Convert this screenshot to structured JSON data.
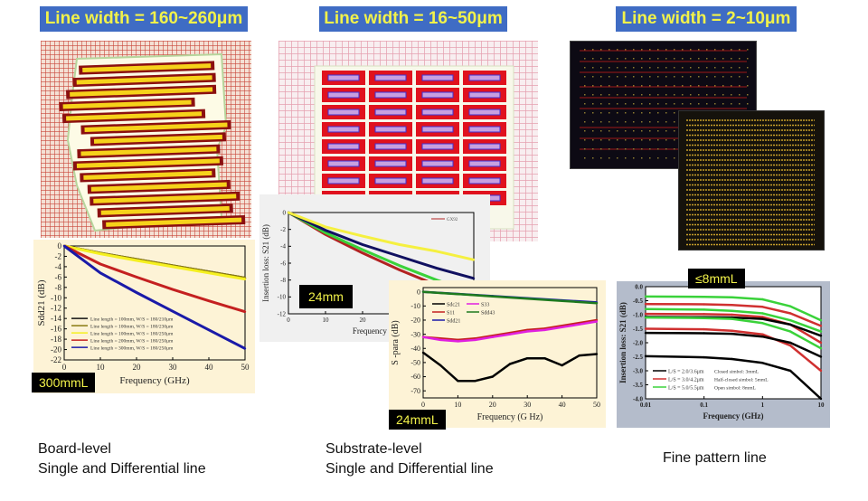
{
  "banners": [
    {
      "label": "Line width = 160~260μm"
    },
    {
      "label": "Line width = 16~50μm"
    },
    {
      "label": "Line width = 2~10μm"
    }
  ],
  "captions": [
    {
      "line1": "Board-level",
      "line2": "Single and Differential line"
    },
    {
      "line1": "Substrate-level",
      "line2": "Single and Differential line"
    },
    {
      "line1": "Fine pattern line",
      "line2": ""
    }
  ],
  "tags": {
    "board": "300mmL",
    "substrate_il": "24mm",
    "substrate_sp": "24mmL",
    "fine": "≤8mmL"
  },
  "colors": {
    "banner_bg": "#3f6cc4",
    "banner_text": "#f2f24a",
    "chart_bg_warm": "#fdf3d6",
    "chart_bg_gray": "#b4bccb"
  },
  "chart_data": [
    {
      "id": "board",
      "type": "line",
      "title": "",
      "xlabel": "Frequency (GHz)",
      "ylabel": "Sdd21 (dB)",
      "xlim": [
        0,
        50
      ],
      "ylim": [
        -22,
        0
      ],
      "xticks": [
        0,
        10,
        20,
        30,
        40,
        50
      ],
      "yticks": [
        0,
        -2,
        -4,
        -6,
        -8,
        -10,
        -12,
        -14,
        -16,
        -18,
        -20,
        -22
      ],
      "legend_position": "bottom-left",
      "series": [
        {
          "name": "Line length = 100mm, W/S = 180/210μm",
          "color": "#111111",
          "x": [
            0,
            10,
            20,
            30,
            40,
            50
          ],
          "y": [
            0,
            -1.4,
            -2.6,
            -3.8,
            -5.0,
            -6.2
          ]
        },
        {
          "name": "Line length = 100mm, W/S = 180/230μm",
          "color": "#8a7a10",
          "x": [
            0,
            10,
            20,
            30,
            40,
            50
          ],
          "y": [
            0,
            -1.4,
            -2.6,
            -3.8,
            -5.0,
            -6.2
          ]
        },
        {
          "name": "Line length = 100mm, W/S = 180/250μm",
          "color": "#f5f020",
          "x": [
            0,
            10,
            20,
            30,
            40,
            50
          ],
          "y": [
            0,
            -1.5,
            -2.8,
            -4.0,
            -5.2,
            -6.4
          ]
        },
        {
          "name": "Line length = 200mm, W/S = 180/250μm",
          "color": "#c42020",
          "x": [
            0,
            10,
            20,
            30,
            40,
            50
          ],
          "y": [
            0,
            -3.5,
            -6.0,
            -8.4,
            -10.6,
            -12.7
          ]
        },
        {
          "name": "Line length = 300mm, W/S = 180/250μm",
          "color": "#1a1aa8",
          "x": [
            0,
            10,
            20,
            30,
            40,
            50
          ],
          "y": [
            0,
            -5.2,
            -9.0,
            -12.6,
            -16.2,
            -19.8
          ]
        }
      ]
    },
    {
      "id": "substrate-insertion-loss",
      "type": "line",
      "title": "",
      "xlabel": "Frequency (GHz)",
      "ylabel": "Insertion loss: S21 (dB)",
      "xlim": [
        0,
        50
      ],
      "ylim": [
        -12,
        0
      ],
      "xticks": [
        0,
        10,
        20
      ],
      "yticks": [
        0,
        -2,
        -4,
        -6,
        -8,
        -10,
        -12
      ],
      "legend_position": "top-right",
      "legend": [
        "GX92"
      ],
      "series": [
        {
          "name": "GX92",
          "color": "#b22222",
          "x": [
            0,
            10,
            20,
            30,
            40,
            50
          ],
          "y": [
            0,
            -2.6,
            -4.8,
            -6.8,
            -8.6,
            -10.2
          ]
        },
        {
          "name": "green",
          "color": "#3ad23a",
          "x": [
            0,
            10,
            20,
            30,
            40,
            50
          ],
          "y": [
            0,
            -2.4,
            -4.4,
            -6.3,
            -8.0,
            -9.5
          ]
        },
        {
          "name": "navy",
          "color": "#101060",
          "x": [
            0,
            10,
            20,
            30,
            40,
            50
          ],
          "y": [
            0,
            -2.1,
            -3.8,
            -5.2,
            -6.6,
            -7.8
          ]
        },
        {
          "name": "yellow",
          "color": "#f5f040",
          "x": [
            0,
            10,
            20,
            30,
            40,
            50
          ],
          "y": [
            0,
            -1.7,
            -2.8,
            -3.8,
            -4.6,
            -5.6
          ]
        }
      ]
    },
    {
      "id": "substrate-sparams",
      "type": "line",
      "title": "",
      "xlabel": "Frequency (G Hz)",
      "ylabel": "S -para (dB)",
      "xlim": [
        0,
        50
      ],
      "ylim": [
        -75,
        3
      ],
      "xticks": [
        0,
        10,
        20,
        30,
        40,
        50
      ],
      "yticks": [
        0,
        -10,
        -20,
        -30,
        -40,
        -50,
        -60,
        -70
      ],
      "legend_position": "top-left",
      "series": [
        {
          "name": "Sdc21",
          "color": "#000000",
          "x": [
            0,
            5,
            10,
            15,
            20,
            25,
            30,
            35,
            40,
            45,
            50
          ],
          "y": [
            -43,
            -52,
            -63,
            -63,
            -60,
            -51,
            -47,
            -47,
            -52,
            -45,
            -44
          ]
        },
        {
          "name": "S11",
          "color": "#c42020",
          "x": [
            0,
            5,
            10,
            15,
            20,
            25,
            30,
            35,
            40,
            45,
            50
          ],
          "y": [
            -32,
            -33,
            -34,
            -33,
            -31,
            -29,
            -27,
            -26,
            -24,
            -22,
            -20
          ]
        },
        {
          "name": "Sdd21",
          "color": "#1a1aa8",
          "x": [
            0,
            10,
            20,
            30,
            40,
            50
          ],
          "y": [
            0,
            -1.5,
            -3,
            -4.5,
            -6,
            -7.5
          ]
        },
        {
          "name": "S33",
          "color": "#e020e0",
          "x": [
            0,
            5,
            10,
            15,
            20,
            25,
            30,
            35,
            40,
            45,
            50
          ],
          "y": [
            -32,
            -34,
            -35,
            -34,
            -32,
            -30,
            -28,
            -27,
            -25,
            -23,
            -21
          ]
        },
        {
          "name": "Sdd43",
          "color": "#1e7a1e",
          "x": [
            0,
            10,
            20,
            30,
            40,
            50
          ],
          "y": [
            0,
            -1.6,
            -3.2,
            -4.8,
            -6.4,
            -8
          ]
        }
      ]
    },
    {
      "id": "fine-pattern",
      "type": "line",
      "title": "",
      "xlabel": "Frequency (GHz)",
      "ylabel": "Insertion loss: S21 (dB)",
      "xscale": "log",
      "xlim": [
        0.01,
        10
      ],
      "ylim": [
        -4.0,
        0.0
      ],
      "xticks": [
        0.01,
        0.1,
        1,
        10
      ],
      "xtick_labels": [
        "0.01",
        "0.1",
        "1",
        "10"
      ],
      "yticks": [
        0.0,
        -0.5,
        -1.0,
        -1.5,
        -2.0,
        -2.5,
        -3.0,
        -3.5,
        -4.0
      ],
      "ytick_labels": [
        "0.0",
        "-0.5",
        "-1.0",
        "-1.5",
        "-2.0",
        "-2.5",
        "-3.0",
        "-3.5",
        "-4.0"
      ],
      "legend_position": "bottom-left",
      "legend": [
        "L/S = 2.0/3.6μm",
        "L/S = 3.0/4.2μm",
        "L/S = 5.0/5.5μm"
      ],
      "annotations": [
        "Closed simbol: 3mmL",
        "Half-closed simbol: 5mmL",
        "Open simbol: 8mmL"
      ],
      "series": [
        {
          "name": "L/S = 5.0/5.5μm 3mmL",
          "color": "#3ad23a",
          "x": [
            0.01,
            0.1,
            0.3,
            1,
            3,
            10
          ],
          "y": [
            -0.35,
            -0.36,
            -0.38,
            -0.45,
            -0.7,
            -1.2
          ]
        },
        {
          "name": "L/S = 3.0/4.2μm 3mmL",
          "color": "#d03030",
          "x": [
            0.01,
            0.1,
            0.3,
            1,
            3,
            10
          ],
          "y": [
            -0.62,
            -0.63,
            -0.65,
            -0.72,
            -0.95,
            -1.4
          ]
        },
        {
          "name": "L/S = 5.0/5.5μm 5mmL",
          "color": "#3ad23a",
          "x": [
            0.01,
            0.1,
            0.3,
            1,
            3,
            10
          ],
          "y": [
            -0.8,
            -0.82,
            -0.86,
            -0.95,
            -1.2,
            -1.6
          ]
        },
        {
          "name": "L/S = 3.0/4.2μm 5mmL",
          "color": "#d03030",
          "x": [
            0.01,
            0.1,
            0.3,
            1,
            3,
            10
          ],
          "y": [
            -0.97,
            -0.98,
            -1.0,
            -1.08,
            -1.35,
            -2.0
          ]
        },
        {
          "name": "L/S = 2.0/3.6μm 3mmL",
          "color": "#000000",
          "x": [
            0.01,
            0.1,
            0.3,
            1,
            3,
            10
          ],
          "y": [
            -1.08,
            -1.09,
            -1.1,
            -1.15,
            -1.35,
            -1.75
          ]
        },
        {
          "name": "L/S = 5.0/5.5μm 8mmL",
          "color": "#3ad23a",
          "x": [
            0.01,
            0.1,
            0.3,
            1,
            3,
            10
          ],
          "y": [
            -1.1,
            -1.12,
            -1.15,
            -1.3,
            -1.6,
            -2.2
          ]
        },
        {
          "name": "L/S = 3.0/4.2μm 8mmL",
          "color": "#d03030",
          "x": [
            0.01,
            0.1,
            0.3,
            1,
            3,
            10
          ],
          "y": [
            -1.5,
            -1.52,
            -1.57,
            -1.7,
            -2.1,
            -3.0
          ]
        },
        {
          "name": "L/S = 2.0/3.6μm 5mmL",
          "color": "#000000",
          "x": [
            0.01,
            0.1,
            0.3,
            1,
            3,
            10
          ],
          "y": [
            -1.65,
            -1.66,
            -1.68,
            -1.78,
            -2.0,
            -2.5
          ]
        },
        {
          "name": "L/S = 2.0/3.6μm 8mmL",
          "color": "#000000",
          "x": [
            0.01,
            0.1,
            0.3,
            1,
            3,
            10
          ],
          "y": [
            -2.48,
            -2.52,
            -2.58,
            -2.72,
            -3.0,
            -4.0
          ]
        }
      ]
    }
  ]
}
